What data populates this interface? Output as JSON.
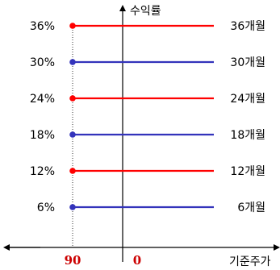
{
  "chart_data": {
    "type": "line",
    "y_axis_label": "수익률",
    "x_axis_label": "기준주가",
    "x_ticks": [
      {
        "label": "90",
        "value": 90,
        "color": "#cc0000"
      },
      {
        "label": "0",
        "value": 0,
        "color": "#cc0000"
      }
    ],
    "series": [
      {
        "name": "36개월",
        "y": 36,
        "y_label": "36%",
        "x_start": 90,
        "color": "#ff0000"
      },
      {
        "name": "30개월",
        "y": 30,
        "y_label": "30%",
        "x_start": 90,
        "color": "#3333bb"
      },
      {
        "name": "24개월",
        "y": 24,
        "y_label": "24%",
        "x_start": 90,
        "color": "#ff0000"
      },
      {
        "name": "18개월",
        "y": 18,
        "y_label": "18%",
        "x_start": 90,
        "color": "#3333bb"
      },
      {
        "name": "12개월",
        "y": 12,
        "y_label": "12%",
        "x_start": 90,
        "color": "#ff0000"
      },
      {
        "name": "6개월",
        "y": 6,
        "y_label": "6%",
        "x_start": 90,
        "color": "#3333bb"
      }
    ],
    "grid": false
  }
}
